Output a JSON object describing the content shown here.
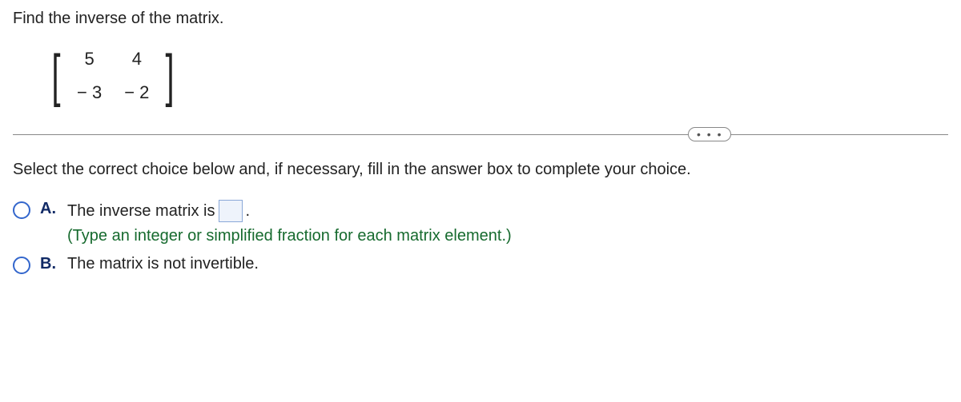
{
  "question": "Find the inverse of the matrix.",
  "matrix": {
    "r0c0": "5",
    "r0c1": "4",
    "r1c0": "− 3",
    "r1c1": "− 2"
  },
  "divider": {
    "ellipsis": "• • •"
  },
  "instruction": "Select the correct choice below and, if necessary, fill in the answer box to complete your choice.",
  "choices": {
    "a": {
      "label": "A.",
      "pre": "The inverse matrix is",
      "post": ".",
      "hint": "(Type an integer or simplified fraction for each matrix element.)"
    },
    "b": {
      "label": "B.",
      "text": "The matrix is not invertible."
    }
  }
}
